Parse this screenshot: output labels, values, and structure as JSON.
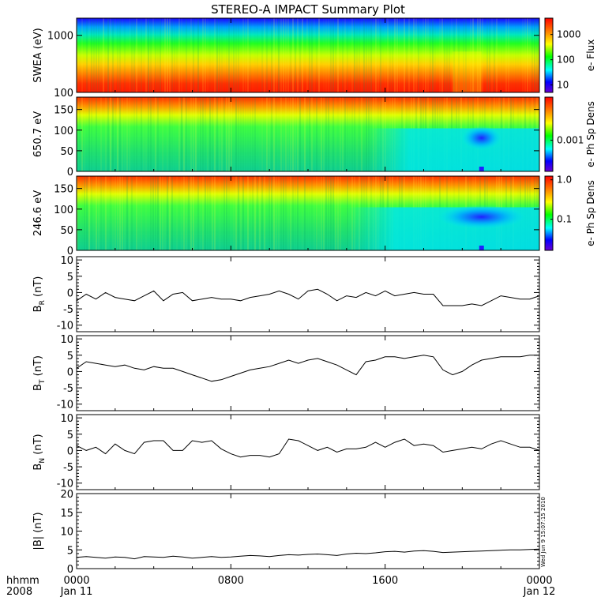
{
  "title": "STEREO-A IMPACT Summary Plot",
  "stamp": "Wed Jun  9 15:07:15 2010",
  "time_axis": {
    "label_top": "hhmm",
    "label_bottom": "2008",
    "ticks": [
      {
        "hhmm": "0000",
        "date": "Jan 11",
        "hours": 0
      },
      {
        "hhmm": "0800",
        "date": "",
        "hours": 8
      },
      {
        "hhmm": "1600",
        "date": "",
        "hours": 16
      },
      {
        "hhmm": "0000",
        "date": "Jan 12",
        "hours": 24
      }
    ],
    "range_hours": [
      0,
      24
    ]
  },
  "colors": {
    "spectrogram_scale": [
      "#ff0000",
      "#ff8000",
      "#ffff00",
      "#00ff00",
      "#00ffff",
      "#0000ff",
      "#6a00d0"
    ],
    "line": "#000000"
  },
  "chart_data": [
    {
      "type": "heatmap",
      "panel": "swea",
      "ylabel": "SWEA (eV)",
      "yscale": "log",
      "ylim": [
        100,
        2000
      ],
      "yticks": [
        {
          "v": 100,
          "label": "100"
        },
        {
          "v": 1000,
          "label": "1000"
        }
      ],
      "colorbar": {
        "label": "e- Flux",
        "scale": "log",
        "ticks": [
          {
            "label": "1000",
            "frac": 0.22
          },
          {
            "label": "100",
            "frac": 0.56
          },
          {
            "label": "10",
            "frac": 0.9
          }
        ]
      },
      "feature_depletion_hours": [
        19.5,
        21.0
      ]
    },
    {
      "type": "heatmap",
      "panel": "pad650",
      "ylabel": "650.7 eV",
      "ylim": [
        0,
        180
      ],
      "yticks": [
        {
          "v": 0,
          "label": "0"
        },
        {
          "v": 50,
          "label": "50"
        },
        {
          "v": 100,
          "label": "100"
        },
        {
          "v": 150,
          "label": "150"
        }
      ],
      "colorbar": {
        "label": "e- Ph Sp Dens",
        "scale": "log",
        "ticks": [
          {
            "label": "0.001",
            "frac": 0.58
          }
        ]
      },
      "feature_depletion_hours": [
        17.5,
        23.0
      ]
    },
    {
      "type": "heatmap",
      "panel": "pad246",
      "ylabel": "246.6 eV",
      "ylim": [
        0,
        180
      ],
      "yticks": [
        {
          "v": 0,
          "label": "0"
        },
        {
          "v": 50,
          "label": "50"
        },
        {
          "v": 100,
          "label": "100"
        },
        {
          "v": 150,
          "label": "150"
        }
      ],
      "colorbar": {
        "label": "e- Ph Sp Dens",
        "scale": "log",
        "ticks": [
          {
            "label": "1.0",
            "frac": 0.05
          },
          {
            "label": "0.1",
            "frac": 0.58
          }
        ]
      },
      "feature_depletion_hours": [
        16.5,
        23.5
      ]
    },
    {
      "type": "line",
      "panel": "br",
      "ylabel": "B",
      "ylabel_sub": "R",
      "ylabel_unit": "(nT)",
      "ylim": [
        -12,
        11
      ],
      "yticks": [
        -10,
        -5,
        0,
        5,
        10
      ],
      "x": [
        0,
        0.5,
        1,
        1.5,
        2,
        2.5,
        3,
        3.5,
        4,
        4.5,
        5,
        5.5,
        6,
        6.5,
        7,
        7.5,
        8,
        8.5,
        9,
        9.5,
        10,
        10.5,
        11,
        11.5,
        12,
        12.5,
        13,
        13.5,
        14,
        14.5,
        15,
        15.5,
        16,
        16.5,
        17,
        17.5,
        18,
        18.5,
        19,
        19.5,
        20,
        20.5,
        21,
        21.5,
        22,
        22.5,
        23,
        23.5,
        24
      ],
      "y": [
        -2.5,
        -0.5,
        -2,
        0,
        -1.5,
        -2,
        -2.5,
        -1,
        0.5,
        -2.5,
        -0.5,
        0,
        -2.5,
        -2,
        -1.5,
        -2,
        -2,
        -2.5,
        -1.5,
        -1,
        -0.5,
        0.5,
        -0.5,
        -2,
        0.5,
        1,
        -0.5,
        -2.5,
        -1,
        -1.5,
        0,
        -1,
        0.5,
        -1,
        -0.5,
        0,
        -0.5,
        -0.5,
        -4,
        -4,
        -4,
        -3.5,
        -4,
        -2.5,
        -1,
        -1.5,
        -2,
        -2,
        -1
      ]
    },
    {
      "type": "line",
      "panel": "bt",
      "ylabel": "B",
      "ylabel_sub": "T",
      "ylabel_unit": "(nT)",
      "ylim": [
        -12,
        11
      ],
      "yticks": [
        -10,
        -5,
        0,
        5,
        10
      ],
      "x": [
        0,
        0.5,
        1,
        1.5,
        2,
        2.5,
        3,
        3.5,
        4,
        4.5,
        5,
        5.5,
        6,
        6.5,
        7,
        7.5,
        8,
        8.5,
        9,
        9.5,
        10,
        10.5,
        11,
        11.5,
        12,
        12.5,
        13,
        13.5,
        14,
        14.5,
        15,
        15.5,
        16,
        16.5,
        17,
        17.5,
        18,
        18.5,
        19,
        19.5,
        20,
        20.5,
        21,
        21.5,
        22,
        22.5,
        23,
        23.5,
        24
      ],
      "y": [
        1,
        3,
        2.5,
        2,
        1.5,
        2,
        1,
        0.5,
        1.5,
        1,
        1,
        0,
        -1,
        -2,
        -3,
        -2.5,
        -1.5,
        -0.5,
        0.5,
        1,
        1.5,
        2.5,
        3.5,
        2.5,
        3.5,
        4,
        3,
        2,
        0.5,
        -1,
        3,
        3.5,
        4.5,
        4.5,
        4,
        4.5,
        5,
        4.5,
        0.5,
        -1,
        0,
        2,
        3.5,
        4,
        4.5,
        4.5,
        4.5,
        5,
        5
      ]
    },
    {
      "type": "line",
      "panel": "bn",
      "ylabel": "B",
      "ylabel_sub": "N",
      "ylabel_unit": "(nT)",
      "ylim": [
        -12,
        11
      ],
      "yticks": [
        -10,
        -5,
        0,
        5,
        10
      ],
      "x": [
        0,
        0.5,
        1,
        1.5,
        2,
        2.5,
        3,
        3.5,
        4,
        4.5,
        5,
        5.5,
        6,
        6.5,
        7,
        7.5,
        8,
        8.5,
        9,
        9.5,
        10,
        10.5,
        11,
        11.5,
        12,
        12.5,
        13,
        13.5,
        14,
        14.5,
        15,
        15.5,
        16,
        16.5,
        17,
        17.5,
        18,
        18.5,
        19,
        19.5,
        20,
        20.5,
        21,
        21.5,
        22,
        22.5,
        23,
        23.5,
        24
      ],
      "y": [
        1.5,
        0,
        1,
        -1,
        2,
        0,
        -1,
        2.5,
        3,
        3,
        0,
        0,
        3,
        2.5,
        3,
        0.5,
        -1,
        -2,
        -1.5,
        -1.5,
        -2,
        -1,
        3.5,
        3,
        1.5,
        0,
        1,
        -0.5,
        0.5,
        0.5,
        1,
        2.5,
        1,
        2.5,
        3.5,
        1.5,
        2,
        1.5,
        -0.5,
        0,
        0.5,
        1,
        0.5,
        2,
        3,
        2,
        1,
        1,
        0
      ]
    },
    {
      "type": "line",
      "panel": "bmag",
      "ylabel": "|B| (nT)",
      "ylim": [
        0,
        20
      ],
      "yticks": [
        0,
        5,
        10,
        15,
        20
      ],
      "x": [
        0,
        0.5,
        1,
        1.5,
        2,
        2.5,
        3,
        3.5,
        4,
        4.5,
        5,
        5.5,
        6,
        6.5,
        7,
        7.5,
        8,
        8.5,
        9,
        9.5,
        10,
        10.5,
        11,
        11.5,
        12,
        12.5,
        13,
        13.5,
        14,
        14.5,
        15,
        15.5,
        16,
        16.5,
        17,
        17.5,
        18,
        18.5,
        19,
        19.5,
        20,
        20.5,
        21,
        21.5,
        22,
        22.5,
        23,
        23.5,
        24
      ],
      "y": [
        3,
        3.2,
        3,
        2.8,
        3.1,
        3,
        2.6,
        3.2,
        3.1,
        3,
        3.3,
        3.1,
        2.8,
        3,
        3.2,
        3,
        3.1,
        3.3,
        3.5,
        3.4,
        3.2,
        3.5,
        3.7,
        3.6,
        3.8,
        3.9,
        3.7,
        3.5,
        3.9,
        4.1,
        4,
        4.2,
        4.5,
        4.6,
        4.4,
        4.7,
        4.8,
        4.6,
        4.3,
        4.4,
        4.5,
        4.6,
        4.7,
        4.8,
        4.9,
        5,
        5,
        5.1,
        5.2
      ]
    }
  ]
}
